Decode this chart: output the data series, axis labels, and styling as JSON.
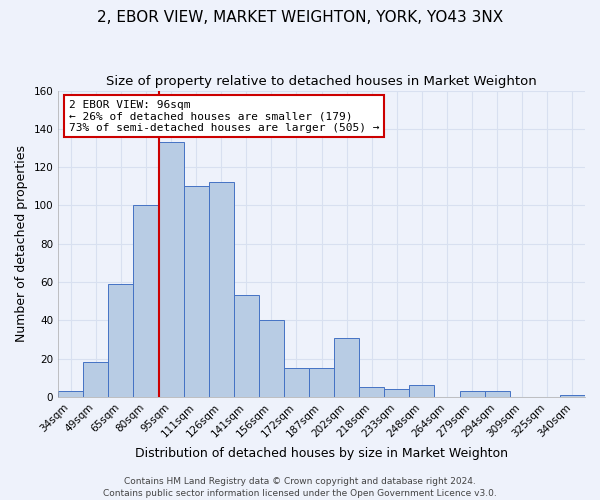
{
  "title": "2, EBOR VIEW, MARKET WEIGHTON, YORK, YO43 3NX",
  "subtitle": "Size of property relative to detached houses in Market Weighton",
  "xlabel": "Distribution of detached houses by size in Market Weighton",
  "ylabel": "Number of detached properties",
  "categories": [
    "34sqm",
    "49sqm",
    "65sqm",
    "80sqm",
    "95sqm",
    "111sqm",
    "126sqm",
    "141sqm",
    "156sqm",
    "172sqm",
    "187sqm",
    "202sqm",
    "218sqm",
    "233sqm",
    "248sqm",
    "264sqm",
    "279sqm",
    "294sqm",
    "309sqm",
    "325sqm",
    "340sqm"
  ],
  "values": [
    3,
    18,
    59,
    100,
    133,
    110,
    112,
    53,
    40,
    15,
    15,
    31,
    5,
    4,
    6,
    0,
    3,
    3,
    0,
    0,
    1
  ],
  "bar_color": "#b8cce4",
  "bar_edge_color": "#4472c4",
  "ylim": [
    0,
    160
  ],
  "yticks": [
    0,
    20,
    40,
    60,
    80,
    100,
    120,
    140,
    160
  ],
  "annotation_title": "2 EBOR VIEW: 96sqm",
  "annotation_line1": "← 26% of detached houses are smaller (179)",
  "annotation_line2": "73% of semi-detached houses are larger (505) →",
  "annotation_box_color": "#ffffff",
  "annotation_box_edge": "#cc0000",
  "marker_bin_index": 4,
  "footer1": "Contains HM Land Registry data © Crown copyright and database right 2024.",
  "footer2": "Contains public sector information licensed under the Open Government Licence v3.0.",
  "bg_color": "#eef2fb",
  "grid_color": "#d8e0f0",
  "title_fontsize": 11,
  "subtitle_fontsize": 9.5,
  "axis_label_fontsize": 9,
  "tick_fontsize": 7.5,
  "footer_fontsize": 6.5
}
